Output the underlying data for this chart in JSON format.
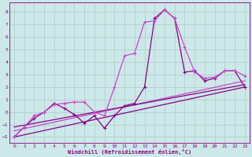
{
  "xlabel": "Windchill (Refroidissement éolien,°C)",
  "bg_color": "#cde8e8",
  "grid_color": "#b0d0d0",
  "line_color_dark": "#880088",
  "line_color_light": "#cc44cc",
  "xlim": [
    -0.5,
    23.5
  ],
  "ylim": [
    -2.5,
    8.8
  ],
  "xticks": [
    0,
    1,
    2,
    3,
    4,
    5,
    6,
    7,
    8,
    9,
    10,
    11,
    12,
    13,
    14,
    15,
    16,
    17,
    18,
    19,
    20,
    21,
    22,
    23
  ],
  "yticks": [
    -2,
    -1,
    0,
    1,
    2,
    3,
    4,
    5,
    6,
    7,
    8
  ],
  "series1_x": [
    0,
    1,
    2,
    3,
    4,
    5,
    6,
    7,
    8,
    9,
    10,
    11,
    12,
    13,
    14,
    15,
    16,
    17,
    18,
    19,
    20,
    21,
    22,
    23
  ],
  "series1_y": [
    -2.0,
    -1.2,
    -0.3,
    0.0,
    0.6,
    0.7,
    0.8,
    0.8,
    0.0,
    -0.3,
    2.0,
    4.5,
    4.7,
    7.2,
    7.3,
    8.2,
    7.5,
    5.2,
    3.2,
    2.7,
    2.8,
    3.3,
    3.3,
    2.9
  ],
  "series2_x": [
    0,
    1,
    2,
    3,
    4,
    5,
    6,
    7,
    8,
    9,
    10,
    11,
    12,
    13,
    14,
    15,
    16,
    17,
    18,
    19,
    20,
    21,
    22,
    23
  ],
  "series2_y": [
    -2.0,
    -1.2,
    -0.5,
    0.0,
    0.7,
    0.3,
    -0.2,
    -0.9,
    -0.3,
    -1.3,
    -0.3,
    0.5,
    0.7,
    2.0,
    7.5,
    8.2,
    7.5,
    3.2,
    3.3,
    2.5,
    2.7,
    3.3,
    3.3,
    2.0
  ],
  "trend1_x": [
    0,
    23
  ],
  "trend1_y": [
    -2.0,
    2.0
  ],
  "trend2_x": [
    0,
    23
  ],
  "trend2_y": [
    -1.5,
    2.5
  ],
  "trend3_x": [
    0,
    23
  ],
  "trend3_y": [
    -1.2,
    2.2
  ]
}
